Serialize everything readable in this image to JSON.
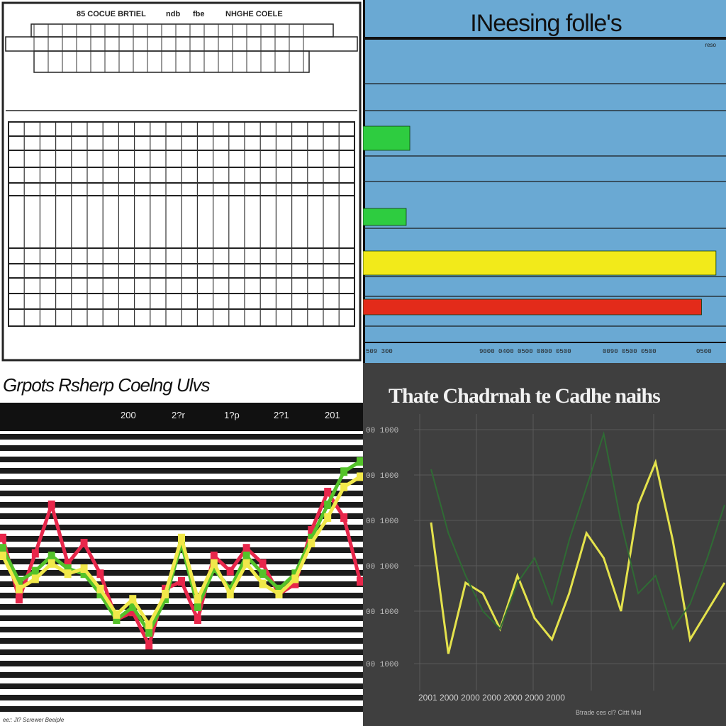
{
  "panels": {
    "table": {
      "header_labels": [
        "85 COCUE BRTIEL",
        "ndb",
        "fbe",
        "NHGHE COELE"
      ]
    },
    "bars": {
      "title": "INeesing folle's",
      "corner_label": "reso",
      "x_tick_labels": [
        "509 300",
        "9000 0400 0500 0800 0500",
        "0090 0500 0500",
        "0500"
      ]
    },
    "candles": {
      "title": "Grpots Rsherp Coelng Ulvs",
      "x_tick_labels": [
        "200",
        "2?r",
        "1?p",
        "2?1",
        "201"
      ],
      "footer_label": "ee:: Jl? Screwer Beeiple"
    },
    "lines": {
      "title": "Thate Chadrnah te Cadhe naihs",
      "y_tick_labels": [
        "00 1000",
        "00 1000",
        "00 1000",
        "00 1000",
        "00 1000",
        "00 1000"
      ],
      "x_tick_labels": [
        "2001 2000 2000 2000 2000 2000 2000"
      ],
      "footer_label": "Btrade ces cl? Cittt Mal"
    }
  },
  "chart_data": [
    {
      "type": "table",
      "columns": [
        "85 COCUE BRTIEL",
        "ndb",
        "fbe",
        "NHGHE COELE"
      ]
    },
    {
      "type": "bar",
      "title": "INeesing folle's",
      "orientation": "horizontal",
      "series": [
        {
          "color": "#2ecc40",
          "values": [
            13
          ]
        },
        {
          "color": "#2ecc40",
          "values": [
            12
          ]
        },
        {
          "color": "#f2ea1a",
          "values": [
            98
          ]
        },
        {
          "color": "#e32b1a",
          "values": [
            94
          ]
        }
      ],
      "xlim": [
        0,
        100
      ],
      "grid": true
    },
    {
      "type": "line",
      "title": "Grpots Rsherp Coelng Ulvs",
      "series": [
        {
          "color": "#e8274b",
          "values": [
            62,
            38,
            56,
            75,
            52,
            60,
            48,
            30,
            33,
            20,
            42,
            45,
            30,
            55,
            49,
            58,
            52,
            40,
            44,
            65,
            80,
            70,
            45
          ]
        },
        {
          "color": "#54c22a",
          "values": [
            58,
            45,
            49,
            55,
            50,
            48,
            40,
            30,
            35,
            25,
            38,
            60,
            35,
            50,
            42,
            55,
            48,
            42,
            48,
            62,
            75,
            88,
            92
          ]
        },
        {
          "color": "#f1e84a",
          "values": [
            55,
            42,
            46,
            52,
            48,
            50,
            42,
            32,
            38,
            28,
            40,
            62,
            38,
            52,
            40,
            52,
            44,
            40,
            46,
            60,
            70,
            82,
            86
          ]
        }
      ],
      "grid": true
    },
    {
      "type": "line",
      "title": "Thate Chadrnah te Cadhe naihs",
      "series": [
        {
          "color": "#e4e24c",
          "values": [
            45,
            8,
            28,
            25,
            15,
            30,
            18,
            12,
            25,
            42,
            35,
            20,
            50,
            62,
            40,
            12,
            20,
            28
          ]
        },
        {
          "color": "#2f6b34",
          "values": [
            60,
            42,
            30,
            20,
            15,
            28,
            35,
            22,
            40,
            55,
            70,
            45,
            25,
            30,
            15,
            22,
            35,
            50
          ]
        }
      ],
      "grid": true
    }
  ]
}
